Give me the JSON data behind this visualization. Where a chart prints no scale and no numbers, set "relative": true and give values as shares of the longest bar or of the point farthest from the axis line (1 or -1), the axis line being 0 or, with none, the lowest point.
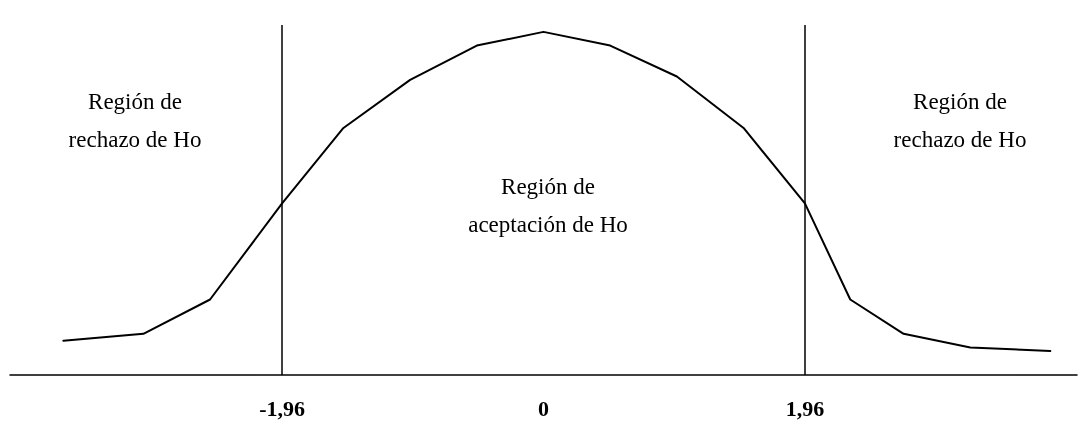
{
  "chart_data": {
    "type": "line",
    "relative": true,
    "grid": false,
    "marker": "none",
    "line_style": "solid",
    "xlim": [
      -4,
      4
    ],
    "xticks": [
      {
        "value": -1.96,
        "label": "-1,96"
      },
      {
        "value": 0,
        "label": "0"
      },
      {
        "value": 1.96,
        "label": "1,96"
      }
    ],
    "tick_labels": "x",
    "series": [
      {
        "color": "#000000",
        "x": [
          -3.6,
          -3,
          -2.5,
          -1.96,
          -1.5,
          -1,
          -0.5,
          0,
          0.5,
          1,
          1.5,
          1.96,
          2.3,
          2.7,
          3.2,
          3.8
        ],
        "values": [
          0.1,
          0.12,
          0.22,
          0.5,
          0.72,
          0.86,
          0.96,
          1,
          0.96,
          0.87,
          0.72,
          0.5,
          0.22,
          0.12,
          0.08,
          0.07
        ]
      }
    ],
    "ref_lines": [
      {
        "axis": "x",
        "value": -1.96,
        "color": "#000000",
        "line_style": "solid"
      },
      {
        "axis": "x",
        "value": 1.96,
        "color": "#000000",
        "line_style": "solid"
      }
    ],
    "annotations": [
      "Región de\nrechazo de Ho",
      "Región de\naceptación de Ho",
      "Región de\nrechazo de Ho"
    ]
  }
}
